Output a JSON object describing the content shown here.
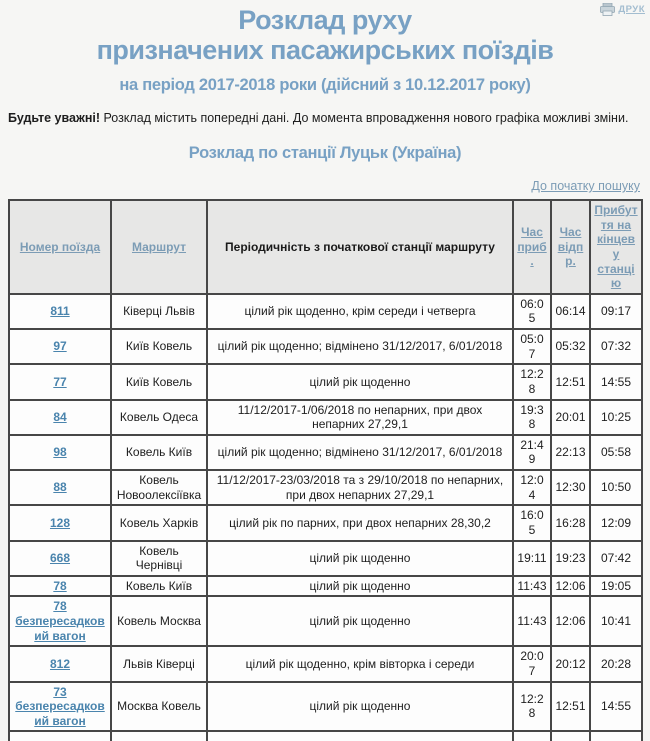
{
  "print": {
    "label": "ДРУК"
  },
  "header": {
    "title_line1": "Розклад руху",
    "title_line2": "призначених пасажирських поїздів",
    "subtitle": "на період 2017-2018 роки (дійсний з 10.12.2017 року)"
  },
  "notice": {
    "bold": "Будьте уважні!",
    "text": " Розклад містить попередні дані. До момента впровадження нового графіка можливі зміни."
  },
  "station_heading": "Розклад по станції Луцьк (Україна)",
  "search_link": "До початку пошуку",
  "table": {
    "columns": {
      "number": "Номер поїзда",
      "route": "Маршрут",
      "periodicity": "Періодичність з початкової станції маршруту",
      "arrival": "Час приб.",
      "departure": "Час відпр.",
      "final_arrival": "Прибуття на кінцеву станцію"
    },
    "rows": [
      {
        "number": "811",
        "route": "Ківерці Львів",
        "periodicity": "цілий рік щоденно, крім середи і четверга",
        "arrival": "06:05",
        "departure": "06:14",
        "final_arrival": "09:17"
      },
      {
        "number": "97",
        "route": "Київ Ковель",
        "periodicity": "цілий рік щоденно; відмінено 31/12/2017, 6/01/2018",
        "arrival": "05:07",
        "departure": "05:32",
        "final_arrival": "07:32"
      },
      {
        "number": "77",
        "route": "Київ Ковель",
        "periodicity": "цілий рік щоденно",
        "arrival": "12:28",
        "departure": "12:51",
        "final_arrival": "14:55"
      },
      {
        "number": "84",
        "route": "Ковель Одеса",
        "periodicity": "11/12/2017-1/06/2018 по непарних, при двох непарних 27,29,1",
        "arrival": "19:38",
        "departure": "20:01",
        "final_arrival": "10:25"
      },
      {
        "number": "98",
        "route": "Ковель Київ",
        "periodicity": "цілий рік щоденно; відмінено 31/12/2017, 6/01/2018",
        "arrival": "21:49",
        "departure": "22:13",
        "final_arrival": "05:58"
      },
      {
        "number": "88",
        "route": "Ковель Новоолексіївка",
        "periodicity": "11/12/2017-23/03/2018 та з 29/10/2018 по непарних, при двох непарних 27,29,1",
        "arrival": "12:04",
        "departure": "12:30",
        "final_arrival": "10:50"
      },
      {
        "number": "128",
        "route": "Ковель Харків",
        "periodicity": "цілий рік по парних, при двох непарних 28,30,2",
        "arrival": "16:05",
        "departure": "16:28",
        "final_arrival": "12:09"
      },
      {
        "number": "668",
        "route": "Ковель Чернівці",
        "periodicity": "цілий рік щоденно",
        "arrival": "19:11",
        "departure": "19:23",
        "final_arrival": "07:42"
      },
      {
        "number": "78",
        "route": "Ковель Київ",
        "periodicity": "цілий рік щоденно",
        "arrival": "11:43",
        "departure": "12:06",
        "final_arrival": "19:05"
      },
      {
        "number": "78 безпересадковий вагон",
        "route": "Ковель Москва",
        "periodicity": "цілий рік щоденно",
        "arrival": "11:43",
        "departure": "12:06",
        "final_arrival": "10:41"
      },
      {
        "number": "812",
        "route": "Львів Ківерці",
        "periodicity": "цілий рік щоденно, крім вівторка і середи",
        "arrival": "20:07",
        "departure": "20:12",
        "final_arrival": "20:28"
      },
      {
        "number": "73 безпересадковий вагон",
        "route": "Москва Ковель",
        "periodicity": "цілий рік щоденно",
        "arrival": "12:28",
        "departure": "12:51",
        "final_arrival": "14:55"
      }
    ]
  },
  "colors": {
    "title_blue": "#78a1c4",
    "header_link_blue": "#7c9cb5",
    "train_link_blue": "#4a84ad",
    "border": "#474747",
    "header_bg": "#e7e7e6",
    "page_bg": "#f6f6f4"
  }
}
